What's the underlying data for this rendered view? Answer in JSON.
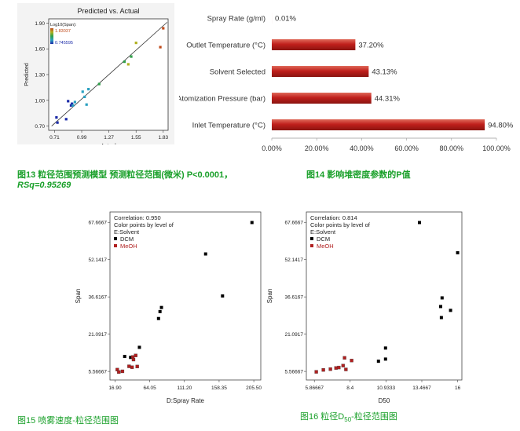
{
  "captions": {
    "fig13": "图13 粒径范围预测模型   预测粒径范围(微米)   P<0.0001，",
    "fig13_rsq": "RSq=0.95269",
    "fig14": "图14 影响堆密度参数的P值",
    "fig15": "图15  喷雾速度-粒径范围图",
    "fig16_a": "图16 粒径D",
    "fig16_sub": "50",
    "fig16_b": "-粒径范围图"
  },
  "chart_data": [
    {
      "id": "fig13",
      "type": "scatter",
      "title": "Predicted vs. Actual",
      "xlabel": "Actual",
      "ylabel": "Predicted",
      "xlim": [
        0.65,
        1.88
      ],
      "ylim": [
        0.65,
        1.95
      ],
      "xticks": [
        0.71,
        0.99,
        1.27,
        1.55,
        1.83
      ],
      "xtick_labels": [
        "0.71",
        "0.99",
        "1.27",
        "1.55",
        "1.83"
      ],
      "yticks": [
        0.7,
        1.0,
        1.3,
        1.6,
        1.9
      ],
      "ytick_labels": [
        "0.70",
        "1.00",
        "1.30",
        "1.60",
        "1.90"
      ],
      "legend_title": "Log10(Span):",
      "legend_max": "1.83037",
      "legend_min": "0.745595",
      "colors": [
        "#1a2aa8",
        "#2aa0c0",
        "#2fa04a",
        "#b0b020",
        "#c04a1a"
      ],
      "points": [
        {
          "x": 0.73,
          "y": 0.8,
          "c": 0
        },
        {
          "x": 0.74,
          "y": 0.74,
          "c": 0
        },
        {
          "x": 0.83,
          "y": 0.78,
          "c": 0
        },
        {
          "x": 0.85,
          "y": 0.99,
          "c": 0
        },
        {
          "x": 0.88,
          "y": 0.94,
          "c": 0
        },
        {
          "x": 0.89,
          "y": 0.96,
          "c": 0
        },
        {
          "x": 0.9,
          "y": 0.94,
          "c": 1
        },
        {
          "x": 0.92,
          "y": 0.98,
          "c": 1
        },
        {
          "x": 1.0,
          "y": 1.1,
          "c": 1
        },
        {
          "x": 1.02,
          "y": 1.04,
          "c": 1
        },
        {
          "x": 1.04,
          "y": 0.95,
          "c": 1
        },
        {
          "x": 1.06,
          "y": 1.13,
          "c": 1
        },
        {
          "x": 1.17,
          "y": 1.19,
          "c": 2
        },
        {
          "x": 1.43,
          "y": 1.45,
          "c": 2
        },
        {
          "x": 1.47,
          "y": 1.42,
          "c": 3
        },
        {
          "x": 1.5,
          "y": 1.51,
          "c": 2
        },
        {
          "x": 1.55,
          "y": 1.67,
          "c": 3
        },
        {
          "x": 1.8,
          "y": 1.62,
          "c": 4
        },
        {
          "x": 1.83,
          "y": 1.84,
          "c": 4
        }
      ]
    },
    {
      "id": "fig14",
      "type": "bar",
      "orientation": "horizontal",
      "categories": [
        "Spray Rate (g/ml)",
        "Outlet Temperature (°C)",
        "Solvent Selected",
        "Atomization Pressure (bar)",
        "Inlet Temperature (°C)"
      ],
      "values": [
        0.01,
        37.2,
        43.13,
        44.31,
        94.8
      ],
      "value_labels": [
        "0.01%",
        "37.20%",
        "43.13%",
        "44.31%",
        "94.80%"
      ],
      "xlim": [
        0,
        100
      ],
      "xticks": [
        0,
        20,
        40,
        60,
        80,
        100
      ],
      "xtick_labels": [
        "0.00%",
        "20.00%",
        "40.00%",
        "60.00%",
        "80.00%",
        "100.00%"
      ],
      "bar_color": "#c0201c"
    },
    {
      "id": "fig15",
      "type": "scatter",
      "xlabel": "D:Spray Rate",
      "ylabel": "Span",
      "xlim": [
        10,
        215
      ],
      "ylim": [
        2,
        72
      ],
      "xticks": [
        16.9,
        64.05,
        111.2,
        158.35,
        205.5
      ],
      "xtick_labels": [
        "16.90",
        "64.05",
        "111.20",
        "158.35",
        "205.50"
      ],
      "yticks": [
        5.56667,
        21.0917,
        36.6167,
        52.1417,
        67.6667
      ],
      "ytick_labels": [
        "5.56667",
        "21.0917",
        "36.6167",
        "52.1417",
        "67.6667"
      ],
      "legend_lines": [
        "Correlation: 0.950",
        "Color points by level of",
        "E:Solvent"
      ],
      "legend_items": [
        {
          "label": "DCM",
          "color": "#000000"
        },
        {
          "label": "MeOH",
          "color": "#b02020"
        }
      ],
      "points": [
        {
          "x": 203,
          "y": 67.6,
          "g": 0
        },
        {
          "x": 140,
          "y": 54.5,
          "g": 0
        },
        {
          "x": 163,
          "y": 37.0,
          "g": 0
        },
        {
          "x": 80,
          "y": 32.2,
          "g": 0
        },
        {
          "x": 78,
          "y": 30.5,
          "g": 0
        },
        {
          "x": 76,
          "y": 27.6,
          "g": 0
        },
        {
          "x": 50,
          "y": 15.6,
          "g": 0
        },
        {
          "x": 30,
          "y": 11.8,
          "g": 0
        },
        {
          "x": 38,
          "y": 11.4,
          "g": 0
        },
        {
          "x": 41,
          "y": 11.6,
          "g": 1
        },
        {
          "x": 45,
          "y": 12.2,
          "g": 1
        },
        {
          "x": 42,
          "y": 10.5,
          "g": 1
        },
        {
          "x": 36,
          "y": 7.7,
          "g": 1
        },
        {
          "x": 40,
          "y": 7.3,
          "g": 1
        },
        {
          "x": 47,
          "y": 7.6,
          "g": 1
        },
        {
          "x": 20,
          "y": 6.3,
          "g": 1
        },
        {
          "x": 22,
          "y": 5.3,
          "g": 1
        },
        {
          "x": 27,
          "y": 5.6,
          "g": 1
        }
      ]
    },
    {
      "id": "fig16",
      "type": "scatter",
      "xlabel": "D50",
      "ylabel": "Span",
      "xlim": [
        5.3,
        16.3
      ],
      "ylim": [
        2,
        72
      ],
      "xticks": [
        5.86667,
        8.4,
        10.9333,
        13.4667,
        16
      ],
      "xtick_labels": [
        "5.86667",
        "8.4",
        "10.9333",
        "13.4667",
        "16"
      ],
      "yticks": [
        5.56667,
        21.0917,
        36.6167,
        52.1417,
        67.6667
      ],
      "ytick_labels": [
        "5.56667",
        "21.0917",
        "36.6167",
        "52.1417",
        "67.6667"
      ],
      "legend_lines": [
        "Correlation: 0.814",
        "Color points by level of",
        "E:Solvent"
      ],
      "legend_items": [
        {
          "label": "DCM",
          "color": "#000000"
        },
        {
          "label": "MeOH",
          "color": "#b02020"
        }
      ],
      "points": [
        {
          "x": 13.3,
          "y": 67.6,
          "g": 0
        },
        {
          "x": 16.0,
          "y": 55.0,
          "g": 0
        },
        {
          "x": 14.9,
          "y": 36.2,
          "g": 0
        },
        {
          "x": 14.8,
          "y": 32.6,
          "g": 0
        },
        {
          "x": 15.5,
          "y": 31.0,
          "g": 0
        },
        {
          "x": 14.85,
          "y": 28.0,
          "g": 0
        },
        {
          "x": 10.9,
          "y": 15.3,
          "g": 0
        },
        {
          "x": 10.9,
          "y": 10.7,
          "g": 0
        },
        {
          "x": 10.4,
          "y": 9.8,
          "g": 0
        },
        {
          "x": 8.0,
          "y": 11.2,
          "g": 1
        },
        {
          "x": 8.5,
          "y": 10.1,
          "g": 1
        },
        {
          "x": 7.9,
          "y": 8.0,
          "g": 1
        },
        {
          "x": 7.4,
          "y": 7.0,
          "g": 1
        },
        {
          "x": 7.6,
          "y": 7.2,
          "g": 1
        },
        {
          "x": 7.0,
          "y": 6.5,
          "g": 1
        },
        {
          "x": 6.5,
          "y": 6.2,
          "g": 1
        },
        {
          "x": 6.0,
          "y": 5.4,
          "g": 1
        },
        {
          "x": 8.1,
          "y": 6.4,
          "g": 1
        }
      ]
    }
  ]
}
